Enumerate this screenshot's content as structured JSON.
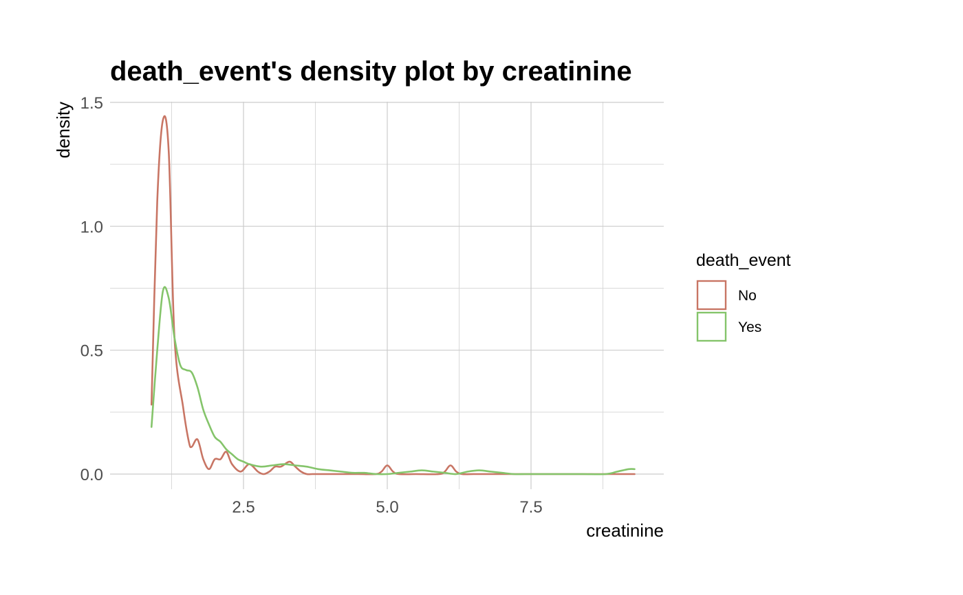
{
  "chart_data": {
    "type": "line",
    "title": "death_event's density plot by creatinine",
    "xlabel": "creatinine",
    "ylabel": "density",
    "xlim": [
      0.5,
      9.4
    ],
    "ylim": [
      -0.04,
      1.5
    ],
    "x_ticks": [
      2.5,
      5.0,
      7.5
    ],
    "x_tick_labels": [
      "2.5",
      "5.0",
      "7.5"
    ],
    "x_minor_grid": [
      1.25,
      3.75,
      6.25,
      8.75
    ],
    "y_ticks": [
      0.0,
      0.5,
      1.0,
      1.5
    ],
    "y_tick_labels": [
      "0.0",
      "0.5",
      "1.0",
      "1.5"
    ],
    "y_minor_grid": [
      0.25,
      0.75,
      1.25
    ],
    "grid": true,
    "legend": {
      "title": "death_event",
      "position": "right"
    },
    "series": [
      {
        "name": "No",
        "color": "#c87564",
        "x": [
          0.9,
          1.0,
          1.1,
          1.2,
          1.3,
          1.45,
          1.55,
          1.6,
          1.7,
          1.8,
          1.9,
          2.0,
          2.1,
          2.2,
          2.3,
          2.45,
          2.6,
          2.75,
          2.85,
          2.95,
          3.05,
          3.15,
          3.3,
          3.4,
          3.5,
          3.6,
          3.7,
          3.8,
          4.0,
          4.5,
          4.8,
          4.9,
          5.0,
          5.1,
          5.2,
          5.5,
          5.9,
          6.0,
          6.1,
          6.2,
          6.3,
          6.5,
          7.0,
          8.0,
          9.0,
          9.3
        ],
        "y": [
          0.28,
          1.1,
          1.43,
          1.3,
          0.55,
          0.27,
          0.13,
          0.11,
          0.14,
          0.06,
          0.02,
          0.06,
          0.06,
          0.09,
          0.04,
          0.01,
          0.04,
          0.01,
          0.0,
          0.01,
          0.03,
          0.03,
          0.05,
          0.03,
          0.01,
          0.0,
          0.0,
          0.0,
          0.0,
          0.0,
          0.0,
          0.01,
          0.035,
          0.01,
          0.0,
          0.0,
          0.0,
          0.01,
          0.035,
          0.01,
          0.0,
          0.0,
          0.0,
          0.0,
          0.0,
          0.0
        ]
      },
      {
        "name": "Yes",
        "color": "#84c46a",
        "x": [
          0.9,
          1.0,
          1.1,
          1.2,
          1.3,
          1.4,
          1.5,
          1.6,
          1.7,
          1.8,
          1.9,
          2.0,
          2.1,
          2.2,
          2.3,
          2.4,
          2.5,
          2.6,
          2.8,
          3.0,
          3.2,
          3.4,
          3.6,
          3.8,
          4.0,
          4.2,
          4.4,
          4.6,
          4.8,
          5.0,
          5.2,
          5.4,
          5.6,
          5.8,
          6.0,
          6.2,
          6.4,
          6.6,
          6.8,
          7.0,
          7.2,
          7.4,
          7.6,
          8.0,
          8.4,
          8.8,
          9.0,
          9.2,
          9.3
        ],
        "y": [
          0.19,
          0.5,
          0.74,
          0.71,
          0.55,
          0.44,
          0.42,
          0.41,
          0.35,
          0.26,
          0.2,
          0.15,
          0.13,
          0.1,
          0.08,
          0.06,
          0.05,
          0.04,
          0.03,
          0.035,
          0.04,
          0.035,
          0.03,
          0.02,
          0.015,
          0.01,
          0.005,
          0.005,
          0.0,
          0.0,
          0.005,
          0.01,
          0.015,
          0.01,
          0.005,
          0.0,
          0.01,
          0.015,
          0.01,
          0.005,
          0.0,
          0.0,
          0.0,
          0.0,
          0.0,
          0.0,
          0.01,
          0.02,
          0.02
        ]
      }
    ]
  }
}
